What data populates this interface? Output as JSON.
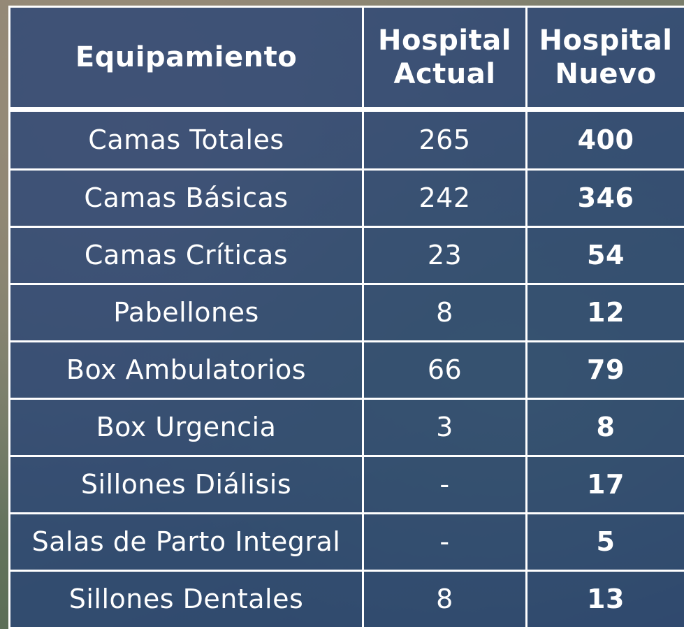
{
  "table": {
    "header": [
      "Equipamiento",
      "Hospital Actual",
      "Hospital Nuevo"
    ],
    "rows": [
      [
        "Camas Totales",
        265,
        400
      ],
      [
        "Camas Básicas",
        242,
        346
      ],
      [
        "Camas Críticas",
        23,
        54
      ],
      [
        "Pabellones",
        8,
        12
      ],
      [
        "Box Ambulatorios",
        66,
        79
      ],
      [
        "Box Urgencia",
        3,
        8
      ],
      [
        "Sillones Diálisis",
        "-",
        17
      ],
      [
        "Salas de Parto Integral",
        "-",
        5
      ],
      [
        "Sillones Dentales",
        8,
        13
      ]
    ]
  }
}
